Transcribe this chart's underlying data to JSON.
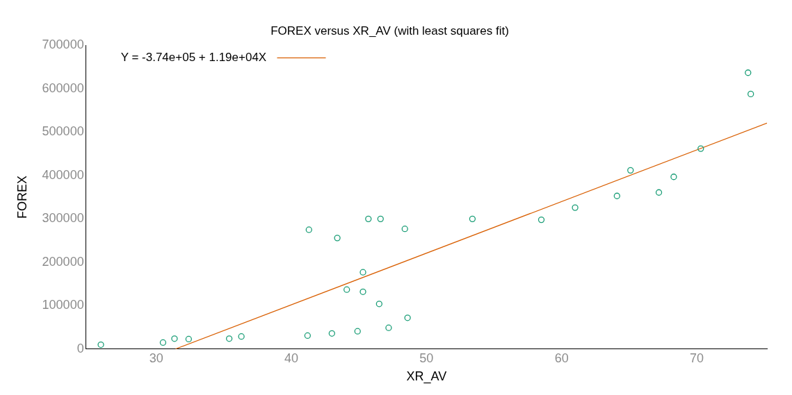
{
  "chart_data": {
    "type": "scatter",
    "title": "FOREX versus XR_AV (with least squares fit)",
    "xlabel": "XR_AV",
    "ylabel": "FOREX",
    "xlim": [
      24.8,
      75.2
    ],
    "xticks": [
      30,
      40,
      50,
      60,
      70
    ],
    "ylim": [
      0,
      700000
    ],
    "yticks": [
      0,
      100000,
      200000,
      300000,
      400000,
      500000,
      600000,
      700000
    ],
    "grid": false,
    "legend": "top left",
    "marker": "circle",
    "series": [
      {
        "type": "scatter",
        "color": "#1b9e77",
        "x": [
          25.9,
          30.5,
          31.35,
          32.4,
          35.4,
          36.3,
          41.2,
          43.0,
          44.9,
          47.2,
          48.6,
          46.5,
          45.3,
          44.1,
          45.3,
          41.3,
          43.4,
          45.7,
          46.6,
          48.4,
          53.4,
          58.5,
          61.0,
          64.1,
          65.1,
          67.2,
          68.3,
          70.3,
          73.8,
          74.0
        ],
        "values": [
          10000,
          15000,
          24000,
          23000,
          24000,
          29000,
          31000,
          36000,
          41000,
          49000,
          72000,
          104000,
          132000,
          137000,
          177000,
          275000,
          256000,
          300000,
          300000,
          277000,
          300000,
          298000,
          326000,
          353000,
          412000,
          361000,
          397000,
          462000,
          637000,
          588000
        ]
      },
      {
        "type": "line",
        "marker": "none",
        "name": "Y = -3.74e+05 + 1.19e+04X",
        "color": "#d95f02",
        "x": [
          31.43,
          75.2
        ],
        "values": [
          0,
          521000
        ]
      }
    ]
  }
}
